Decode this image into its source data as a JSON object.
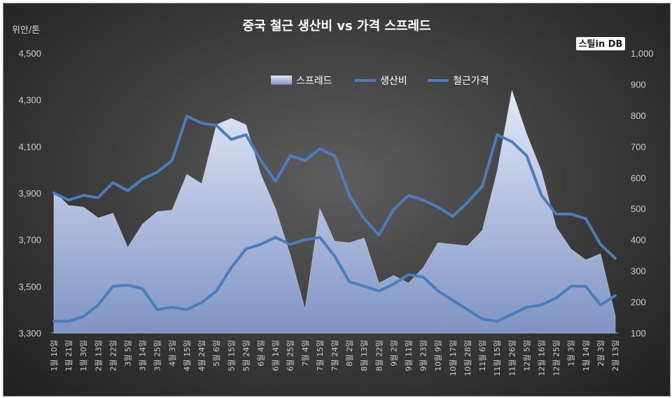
{
  "chart_data": {
    "type": "line",
    "title": "중국 철근 생산비 vs 가격 스프레드",
    "y_left_unit": "위안/톤",
    "y_left_ticks": [
      "3,300",
      "3,500",
      "3,700",
      "3,900",
      "4,100",
      "4,300",
      "4,500"
    ],
    "y_left_range": [
      3300,
      4500
    ],
    "y_right_ticks": [
      "100",
      "200",
      "300",
      "400",
      "500",
      "600",
      "700",
      "800",
      "900",
      "1,000"
    ],
    "y_right_range": [
      100,
      1000
    ],
    "legend": [
      "스프레드",
      "생산비",
      "철근가격"
    ],
    "legend_position": "top-center",
    "watermark": "스틸in DB",
    "categories": [
      "1월 10일",
      "1월 21일",
      "1월 30일",
      "2월 13일",
      "2월 22일",
      "3월 5일",
      "3월 14일",
      "3월 25일",
      "4월 3일",
      "4월 15일",
      "4월 24일",
      "5월 6일",
      "5월 15일",
      "5월 24일",
      "6월 4일",
      "6월 14일",
      "6월 25일",
      "7월 4일",
      "7월 15일",
      "7월 24일",
      "8월 2일",
      "8월 13일",
      "8월 22일",
      "9월 2일",
      "9월 11일",
      "9월 23일",
      "10월 9일",
      "10월 17일",
      "10월 28일",
      "11월 6일",
      "11월 15일",
      "11월 26일",
      "12월 5일",
      "12월 16일",
      "12월 25일",
      "1월 3일",
      "1월 14일",
      "2월 3일",
      "2월 13일"
    ],
    "series": [
      {
        "name": "스프레드",
        "axis": "right",
        "color": "#b8c6e6",
        "values": [
          555,
          510,
          505,
          470,
          485,
          375,
          450,
          490,
          495,
          610,
          580,
          770,
          790,
          770,
          610,
          500,
          350,
          175,
          500,
          395,
          390,
          405,
          260,
          285,
          260,
          310,
          390,
          385,
          380,
          430,
          620,
          880,
          740,
          620,
          440,
          370,
          335,
          355,
          155
        ]
      },
      {
        "name": "생산비",
        "axis": "left",
        "color": "#4a7ebb",
        "values": [
          3900,
          3870,
          3890,
          3880,
          3945,
          3910,
          3960,
          3990,
          4040,
          4230,
          4200,
          4190,
          4130,
          4150,
          4040,
          3950,
          4060,
          4040,
          4090,
          4060,
          3890,
          3790,
          3720,
          3830,
          3890,
          3870,
          3840,
          3800,
          3860,
          3930,
          4150,
          4120,
          4060,
          3890,
          3810,
          3810,
          3790,
          3680,
          3620
        ]
      },
      {
        "name": "철근가격",
        "axis": "left",
        "color": "#4a7ebb",
        "values": [
          3350,
          3350,
          3370,
          3420,
          3500,
          3505,
          3490,
          3400,
          3410,
          3400,
          3430,
          3480,
          3580,
          3660,
          3680,
          3710,
          3680,
          3700,
          3710,
          3630,
          3520,
          3500,
          3480,
          3510,
          3550,
          3540,
          3480,
          3440,
          3400,
          3360,
          3350,
          3380,
          3410,
          3420,
          3450,
          3500,
          3500,
          3420,
          3460
        ]
      }
    ]
  }
}
